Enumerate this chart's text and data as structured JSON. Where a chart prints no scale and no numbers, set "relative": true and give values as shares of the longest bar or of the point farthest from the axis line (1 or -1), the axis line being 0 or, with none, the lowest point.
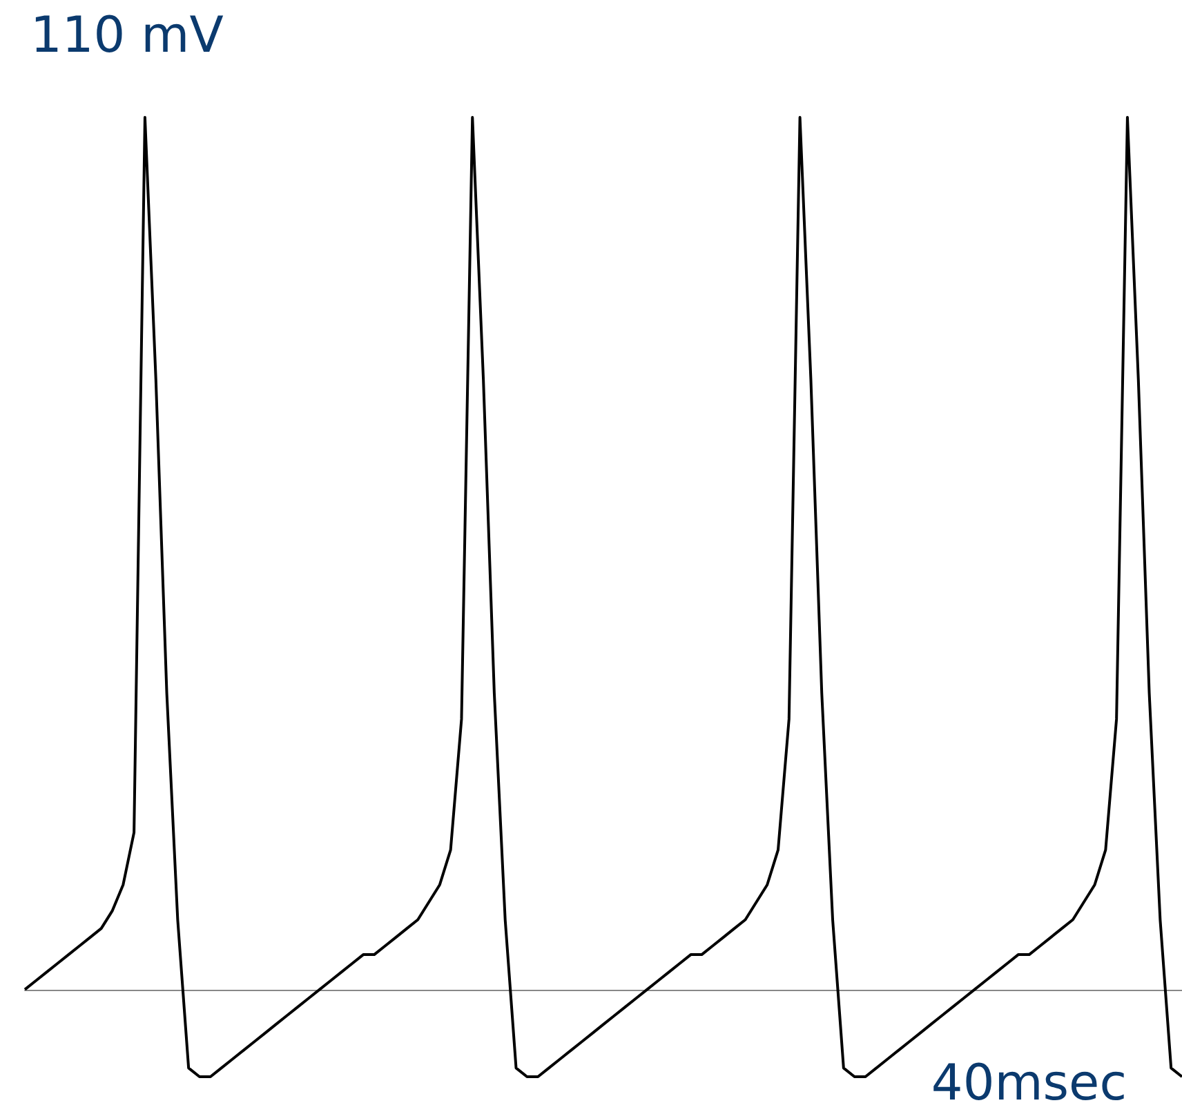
{
  "chart_data": {
    "type": "line",
    "relative": true,
    "color": "#000000",
    "annotations": [
      "110 mV",
      "40msec"
    ],
    "categories": [
      null,
      null,
      null,
      null,
      null,
      null,
      null,
      null,
      null,
      null,
      null,
      null,
      null,
      null,
      null,
      null,
      null,
      null,
      null,
      null,
      null,
      null,
      null,
      null,
      null,
      null,
      null,
      null,
      null,
      null,
      null,
      null,
      null,
      null,
      null,
      null,
      null,
      null,
      null,
      null,
      null,
      null,
      null,
      null,
      null,
      null,
      null,
      null,
      null,
      null,
      null,
      null,
      null,
      null,
      null,
      null,
      null,
      null,
      null,
      null,
      null,
      null,
      null,
      null,
      null,
      null,
      null,
      null,
      null,
      null,
      null,
      null,
      null,
      null,
      null,
      null,
      null,
      null,
      null,
      null,
      null,
      null,
      null,
      null,
      null,
      null,
      null,
      null,
      null,
      null,
      null,
      null,
      null,
      null,
      null,
      null,
      null,
      null,
      null,
      null,
      null,
      null,
      null,
      null,
      null,
      null,
      null
    ],
    "values": [
      0.0,
      0.01,
      0.02,
      0.03,
      0.04,
      0.05,
      0.06,
      0.07,
      0.09,
      0.12,
      0.18,
      1.0,
      0.7,
      0.34,
      0.08,
      -0.09,
      -0.1,
      -0.1,
      -0.09,
      -0.08,
      -0.07,
      -0.06,
      -0.05,
      -0.04,
      -0.03,
      -0.02,
      -0.01,
      0.0,
      0.01,
      0.02,
      0.03,
      0.04,
      0.04,
      0.05,
      0.06,
      0.07,
      0.08,
      0.1,
      0.12,
      0.16,
      0.31,
      1.0,
      0.7,
      0.34,
      0.08,
      -0.09,
      -0.1,
      -0.1,
      -0.09,
      -0.08,
      -0.07,
      -0.06,
      -0.05,
      -0.04,
      -0.03,
      -0.02,
      -0.01,
      0.0,
      0.01,
      0.02,
      0.03,
      0.04,
      0.04,
      0.05,
      0.06,
      0.07,
      0.08,
      0.1,
      0.12,
      0.16,
      0.31,
      1.0,
      0.7,
      0.34,
      0.08,
      -0.09,
      -0.1,
      -0.1,
      -0.09,
      -0.08,
      -0.07,
      -0.06,
      -0.05,
      -0.04,
      -0.03,
      -0.02,
      -0.01,
      0.0,
      0.01,
      0.02,
      0.03,
      0.04,
      0.04,
      0.05,
      0.06,
      0.07,
      0.08,
      0.1,
      0.12,
      0.16,
      0.31,
      1.0,
      0.7,
      0.34,
      0.08,
      -0.09,
      -0.1
    ]
  }
}
